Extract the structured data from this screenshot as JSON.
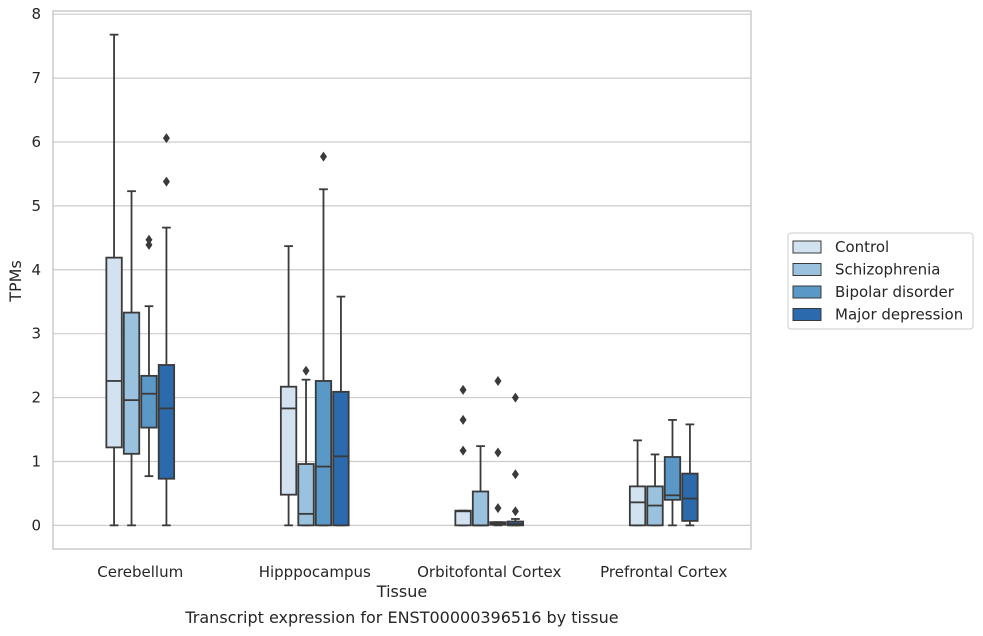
{
  "caption": "Transcript expression for ENST00000396516 by tissue",
  "chart_data": {
    "type": "box",
    "xlabel": "Tissue",
    "ylabel": "TPMs",
    "ylim": [
      -0.37,
      8.05
    ],
    "yticks": [
      0,
      1,
      2,
      3,
      4,
      5,
      6,
      7,
      8
    ],
    "grid": "horizontal",
    "legend_position": "right",
    "categories": [
      "Cerebellum",
      "Hipppocampus",
      "Orbitofontal Cortex",
      "Prefrontal Cortex"
    ],
    "series": [
      {
        "name": "Control",
        "color": "#d2e2f1",
        "boxes": [
          {
            "whisker_low": 0,
            "q1": 1.22,
            "median": 2.26,
            "q3": 4.19,
            "whisker_high": 7.68,
            "outliers": []
          },
          {
            "whisker_low": 0,
            "q1": 0.48,
            "median": 1.83,
            "q3": 2.17,
            "whisker_high": 4.37,
            "outliers": []
          },
          {
            "whisker_low": 0,
            "q1": 0,
            "median": 0.22,
            "q3": 0.23,
            "whisker_high": 0.23,
            "outliers": [
              1.17,
              1.65,
              2.12
            ]
          },
          {
            "whisker_low": 0,
            "q1": 0,
            "median": 0.36,
            "q3": 0.61,
            "whisker_high": 1.33,
            "outliers": []
          }
        ]
      },
      {
        "name": "Schizophrenia",
        "color": "#9ac1dd",
        "boxes": [
          {
            "whisker_low": 0,
            "q1": 1.12,
            "median": 1.96,
            "q3": 3.33,
            "whisker_high": 5.23,
            "outliers": []
          },
          {
            "whisker_low": 0,
            "q1": 0,
            "median": 0.18,
            "q3": 0.96,
            "whisker_high": 2.28,
            "outliers": [
              2.42
            ]
          },
          {
            "whisker_low": 0,
            "q1": 0,
            "median": 0,
            "q3": 0.53,
            "whisker_high": 1.24,
            "outliers": []
          },
          {
            "whisker_low": 0,
            "q1": 0,
            "median": 0.31,
            "q3": 0.61,
            "whisker_high": 1.11,
            "outliers": []
          }
        ]
      },
      {
        "name": "Bipolar disorder",
        "color": "#5a98c8",
        "boxes": [
          {
            "whisker_low": 0.77,
            "q1": 1.53,
            "median": 2.06,
            "q3": 2.34,
            "whisker_high": 3.43,
            "outliers": [
              4.39,
              4.47
            ]
          },
          {
            "whisker_low": 0,
            "q1": 0,
            "median": 0.92,
            "q3": 2.26,
            "whisker_high": 5.26,
            "outliers": [
              5.77
            ]
          },
          {
            "whisker_low": 0,
            "q1": 0.01,
            "median": 0.03,
            "q3": 0.05,
            "whisker_high": 0.05,
            "outliers": [
              0.27,
              1.14,
              2.26
            ]
          },
          {
            "whisker_low": 0,
            "q1": 0.4,
            "median": 0.47,
            "q3": 1.07,
            "whisker_high": 1.65,
            "outliers": []
          }
        ]
      },
      {
        "name": "Major depression",
        "color": "#2a6aad",
        "boxes": [
          {
            "whisker_low": 0,
            "q1": 0.73,
            "median": 1.83,
            "q3": 2.51,
            "whisker_high": 4.66,
            "outliers": [
              5.38,
              6.06
            ]
          },
          {
            "whisker_low": 0,
            "q1": 0,
            "median": 1.08,
            "q3": 2.09,
            "whisker_high": 3.58,
            "outliers": []
          },
          {
            "whisker_low": 0,
            "q1": 0,
            "median": 0.02,
            "q3": 0.06,
            "whisker_high": 0.1,
            "outliers": [
              0.22,
              0.8,
              2.0
            ]
          },
          {
            "whisker_low": 0,
            "q1": 0.07,
            "median": 0.42,
            "q3": 0.81,
            "whisker_high": 1.58,
            "outliers": []
          }
        ]
      }
    ]
  }
}
